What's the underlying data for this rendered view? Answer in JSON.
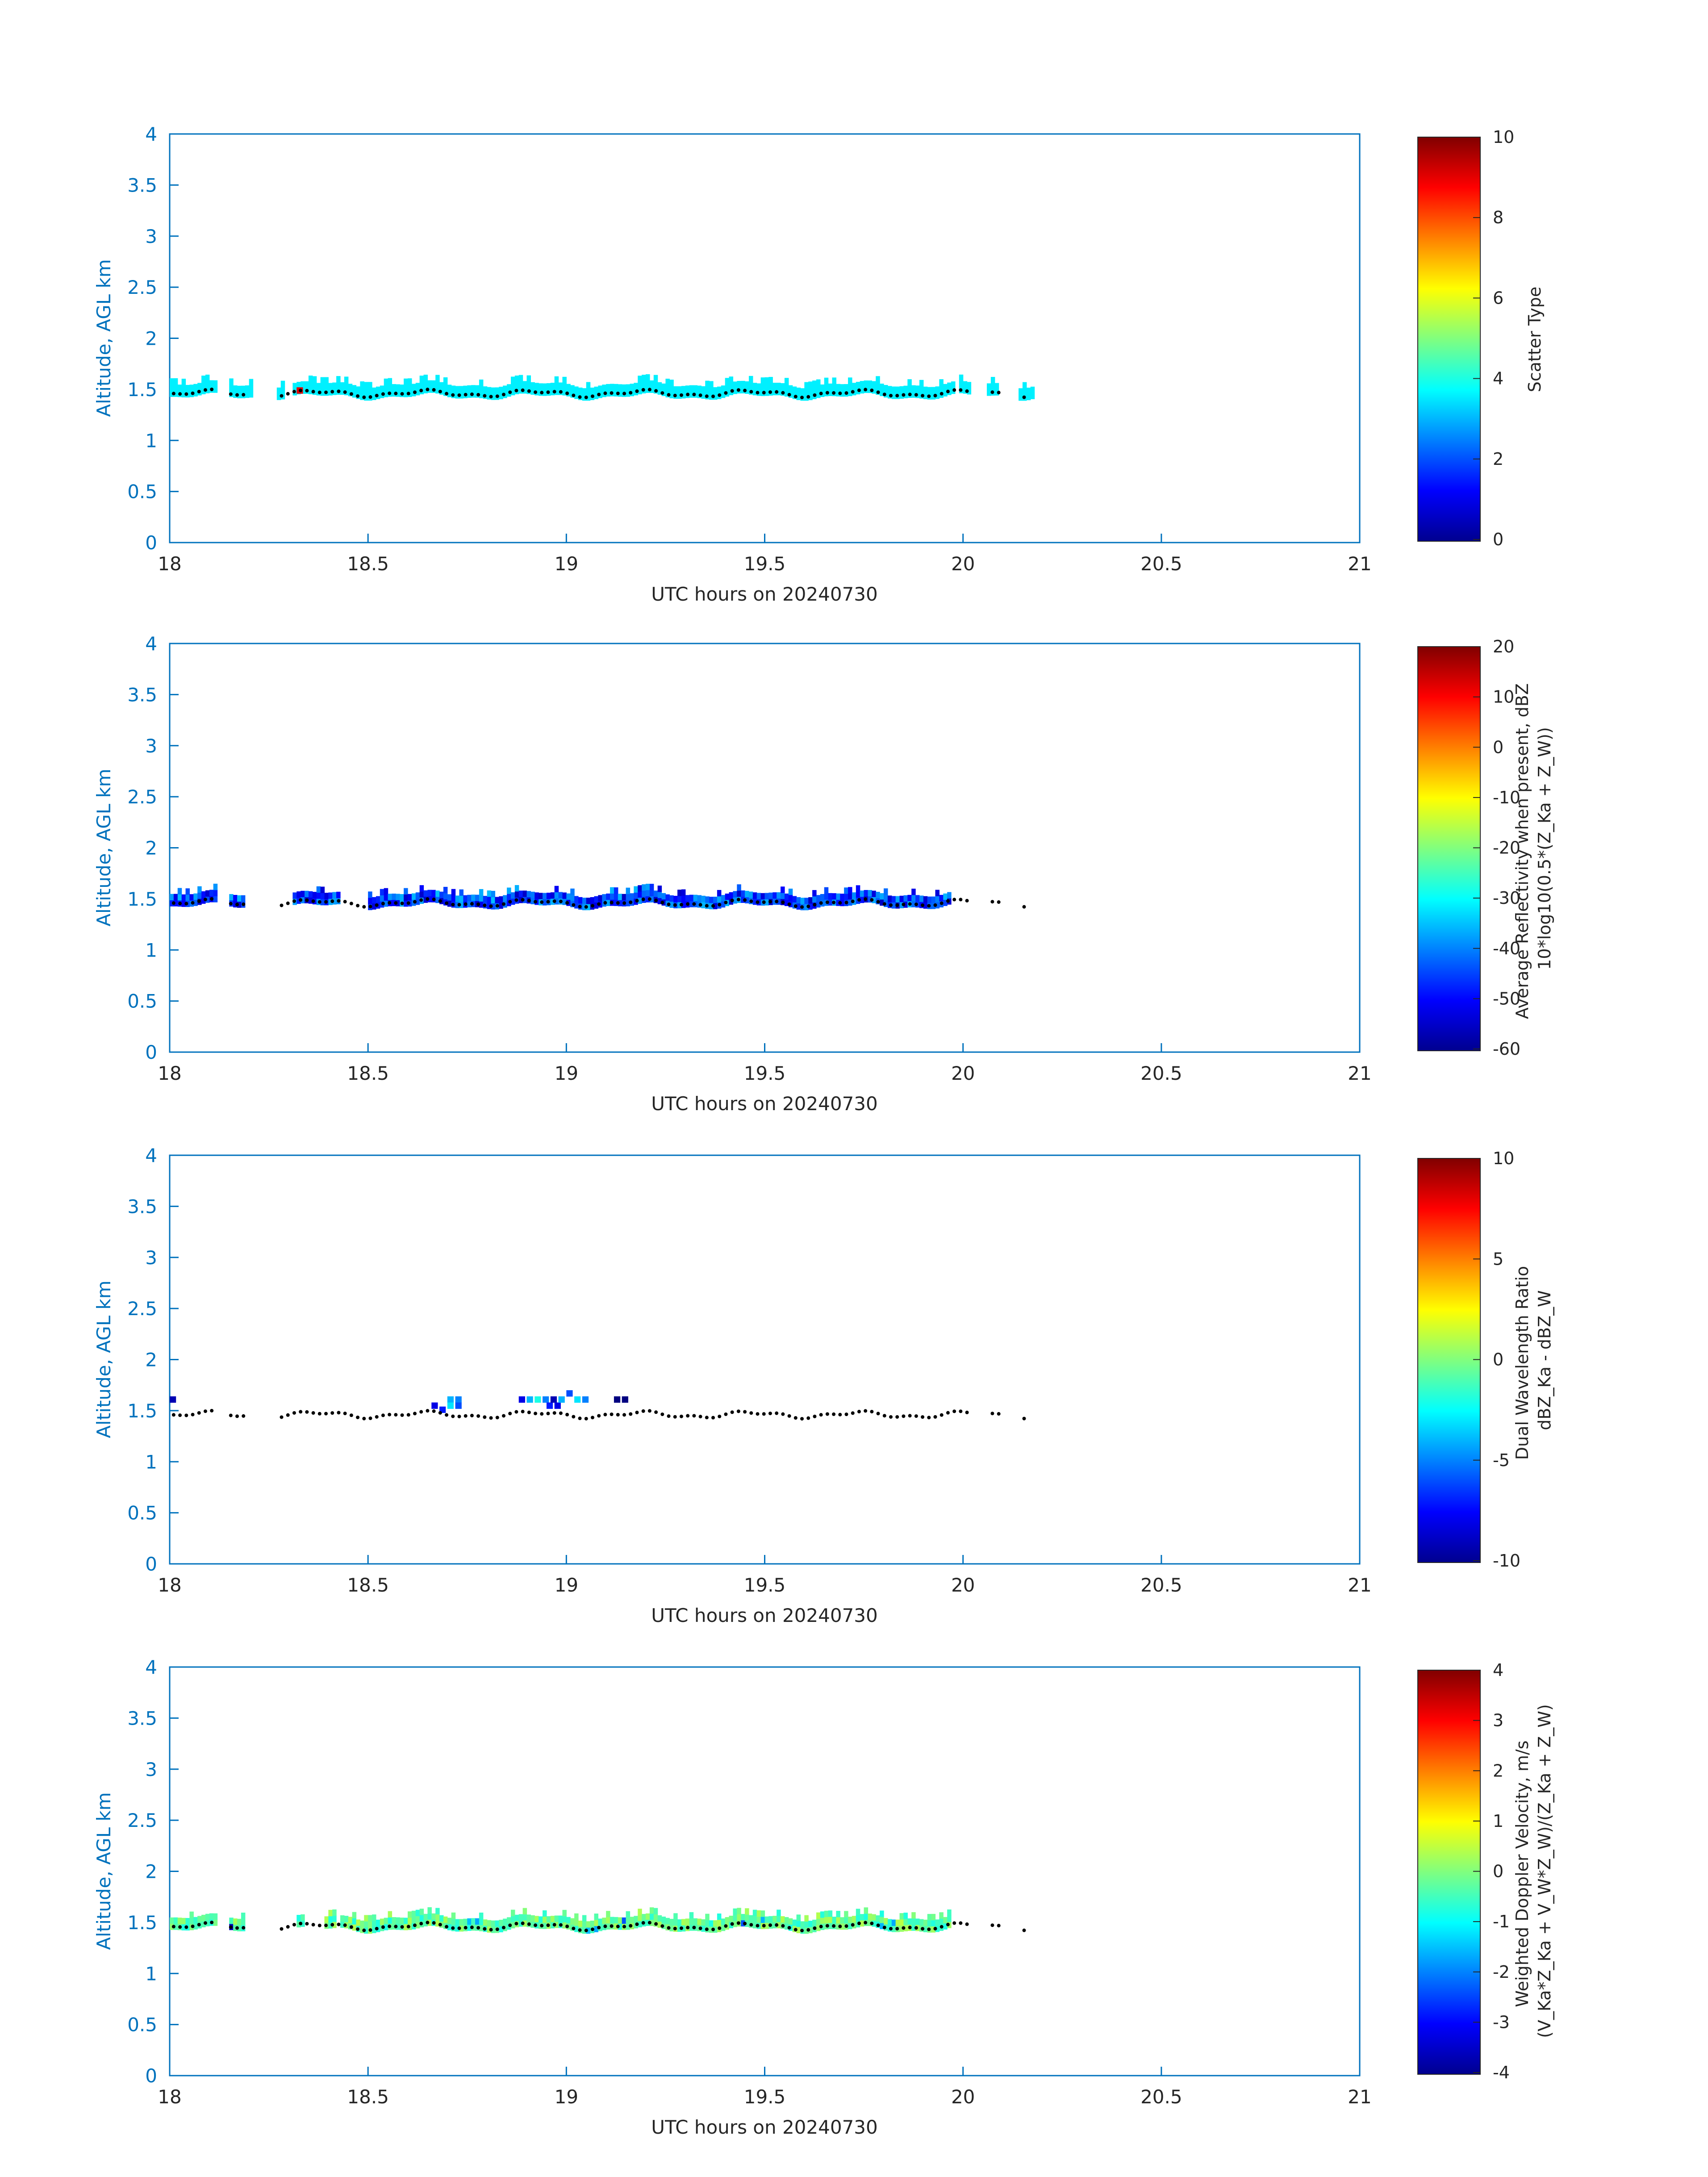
{
  "colors": {
    "axis": "#0072BD",
    "text": "#262626",
    "marker": "#000000"
  },
  "chart_data": [
    {
      "id": "scatter",
      "type": "heatmap",
      "xlabel": "UTC hours on 20240730",
      "ylabel": "Altitude, AGL km",
      "xlim": [
        18,
        21
      ],
      "ylim": [
        0,
        4
      ],
      "xticks": [
        "18",
        "18.5",
        "19",
        "19.5",
        "20",
        "20.5",
        "21"
      ],
      "yticks": [
        "0",
        "0.5",
        "1",
        "1.5",
        "2",
        "2.5",
        "3",
        "3.5",
        "4"
      ],
      "colorbar": {
        "label_lines": [
          "Scatter Type"
        ],
        "range": [
          0,
          10
        ],
        "ticks": [
          "0",
          "2",
          "4",
          "6",
          "8",
          "10"
        ]
      },
      "segments": [
        [
          18.0,
          18.11
        ],
        [
          18.15,
          18.2
        ],
        [
          18.27,
          18.28
        ],
        [
          18.31,
          19.97
        ],
        [
          19.99,
          20.01
        ],
        [
          20.06,
          20.08
        ],
        [
          20.14,
          20.17
        ]
      ],
      "cells": [
        {
          "t": 18.32,
          "alt": 1.46,
          "v": 9
        }
      ]
    },
    {
      "id": "reflectivity",
      "type": "heatmap",
      "xlabel": "UTC hours on 20240730",
      "ylabel": "Altitude, AGL km",
      "xlim": [
        18,
        21
      ],
      "ylim": [
        0,
        4
      ],
      "xticks": [
        "18",
        "18.5",
        "19",
        "19.5",
        "20",
        "20.5",
        "21"
      ],
      "yticks": [
        "0",
        "0.5",
        "1",
        "1.5",
        "2",
        "2.5",
        "3",
        "3.5",
        "4"
      ],
      "colorbar": {
        "label_lines": [
          "Average Reflectivity when present, dBZ",
          "10*log10(0.5*(Z_Ka + Z_W))"
        ],
        "range": [
          -60,
          20
        ],
        "ticks": [
          "-60",
          "-50",
          "-40",
          "-30",
          "-20",
          "-10",
          "0",
          "10",
          "20"
        ]
      },
      "segments": [
        [
          18.0,
          18.11
        ],
        [
          18.15,
          18.18
        ],
        [
          18.31,
          18.42
        ],
        [
          18.5,
          19.96
        ]
      ]
    },
    {
      "id": "dwr",
      "type": "heatmap",
      "xlabel": "UTC hours on 20240730",
      "ylabel": "Altitude, AGL km",
      "xlim": [
        18,
        21
      ],
      "ylim": [
        0,
        4
      ],
      "xticks": [
        "18",
        "18.5",
        "19",
        "19.5",
        "20",
        "20.5",
        "21"
      ],
      "yticks": [
        "0",
        "0.5",
        "1",
        "1.5",
        "2",
        "2.5",
        "3",
        "3.5",
        "4"
      ],
      "colorbar": {
        "label_lines": [
          "Dual Wavelength Ratio",
          "dBZ_Ka - dBZ_W"
        ],
        "range": [
          -10,
          10
        ],
        "ticks": [
          "-10",
          "-5",
          "0",
          "5",
          "10"
        ]
      },
      "cells": [
        {
          "t": 18.0,
          "alt": 1.58,
          "v": -9
        },
        {
          "t": 18.66,
          "alt": 1.52,
          "v": -8
        },
        {
          "t": 18.68,
          "alt": 1.48,
          "v": -7
        },
        {
          "t": 18.7,
          "alt": 1.58,
          "v": -4
        },
        {
          "t": 18.72,
          "alt": 1.58,
          "v": -5
        },
        {
          "t": 18.72,
          "alt": 1.52,
          "v": -6
        },
        {
          "t": 18.7,
          "alt": 1.52,
          "v": -3
        },
        {
          "t": 18.88,
          "alt": 1.58,
          "v": -8
        },
        {
          "t": 18.9,
          "alt": 1.58,
          "v": -4
        },
        {
          "t": 18.92,
          "alt": 1.58,
          "v": -2
        },
        {
          "t": 18.94,
          "alt": 1.58,
          "v": -5
        },
        {
          "t": 18.95,
          "alt": 1.52,
          "v": -7
        },
        {
          "t": 18.96,
          "alt": 1.58,
          "v": -9
        },
        {
          "t": 18.97,
          "alt": 1.52,
          "v": -8
        },
        {
          "t": 18.98,
          "alt": 1.58,
          "v": -4
        },
        {
          "t": 19.0,
          "alt": 1.64,
          "v": -6
        },
        {
          "t": 19.02,
          "alt": 1.58,
          "v": -3
        },
        {
          "t": 19.04,
          "alt": 1.58,
          "v": -5
        },
        {
          "t": 19.12,
          "alt": 1.58,
          "v": -10
        },
        {
          "t": 19.14,
          "alt": 1.58,
          "v": -10
        }
      ]
    },
    {
      "id": "doppler",
      "type": "heatmap",
      "xlabel": "UTC hours on 20240730",
      "ylabel": "Altitude, AGL km",
      "xlim": [
        18,
        21
      ],
      "ylim": [
        0,
        4
      ],
      "xticks": [
        "18",
        "18.5",
        "19",
        "19.5",
        "20",
        "20.5",
        "21"
      ],
      "yticks": [
        "0",
        "0.5",
        "1",
        "1.5",
        "2",
        "2.5",
        "3",
        "3.5",
        "4"
      ],
      "colorbar": {
        "label_lines": [
          "Weighted Doppler Velocity, m/s",
          "(V_Ka*Z_Ka + V_W*Z_W)/(Z_Ka + Z_W)"
        ],
        "range": [
          -4,
          4
        ],
        "ticks": [
          "-4",
          "-3",
          "-2",
          "-1",
          "0",
          "1",
          "2",
          "3",
          "4"
        ]
      },
      "segments": [
        [
          18.0,
          18.11
        ],
        [
          18.15,
          18.18
        ],
        [
          18.32,
          18.33
        ],
        [
          18.39,
          18.41
        ],
        [
          18.43,
          19.96
        ]
      ]
    }
  ]
}
